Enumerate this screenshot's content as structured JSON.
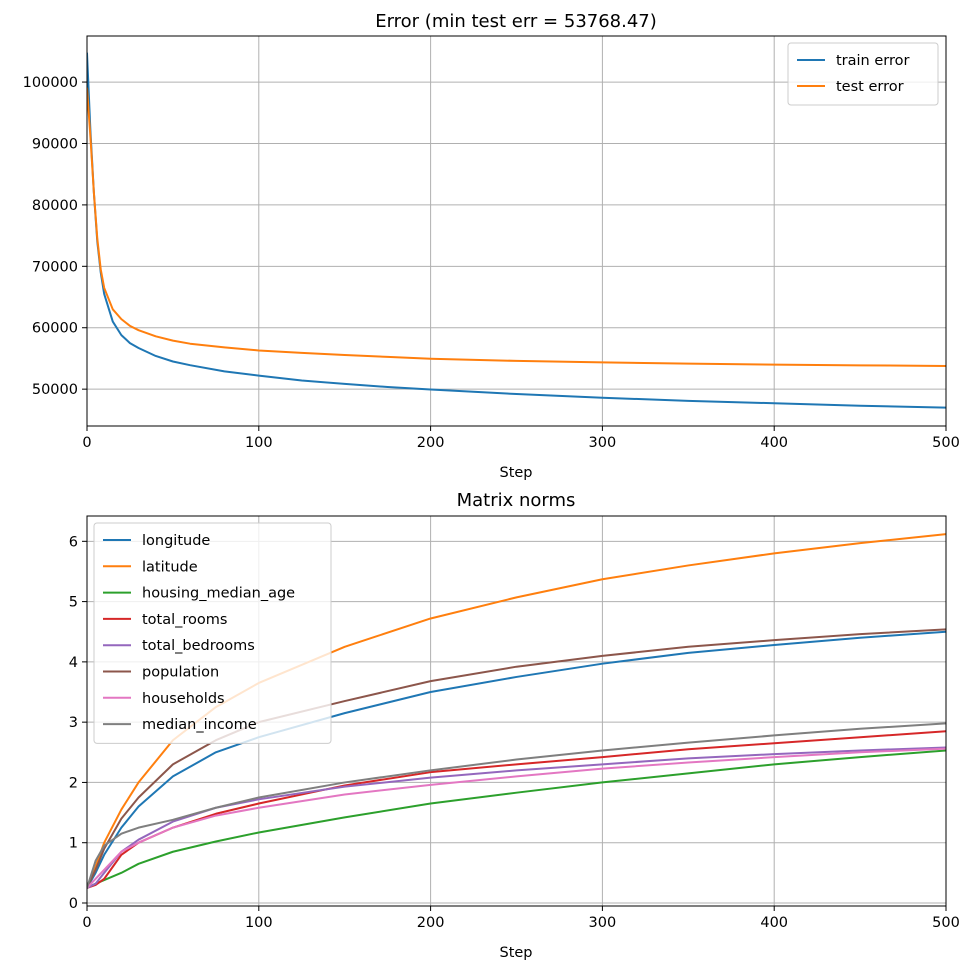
{
  "chart_data": [
    {
      "type": "line",
      "title": "Error (min test err = 53768.47)",
      "xlabel": "Step",
      "ylabel": "",
      "xlim": [
        0,
        500
      ],
      "ylim": [
        44000,
        107500
      ],
      "xticks": [
        0,
        100,
        200,
        300,
        400,
        500
      ],
      "yticks": [
        50000,
        60000,
        70000,
        80000,
        90000,
        100000
      ],
      "grid": true,
      "legend_position": "upper right",
      "series": [
        {
          "name": "train error",
          "color": "#1f77b4",
          "x": [
            0,
            2,
            4,
            6,
            8,
            10,
            15,
            20,
            25,
            30,
            40,
            50,
            60,
            80,
            100,
            125,
            150,
            175,
            200,
            250,
            300,
            350,
            400,
            450,
            500
          ],
          "y": [
            104700,
            92000,
            82000,
            74000,
            69000,
            65500,
            61000,
            58800,
            57500,
            56700,
            55400,
            54500,
            53900,
            52900,
            52200,
            51400,
            50850,
            50350,
            49950,
            49200,
            48600,
            48100,
            47700,
            47300,
            47000
          ]
        },
        {
          "name": "test error",
          "color": "#ff7f0e",
          "x": [
            0,
            2,
            4,
            6,
            8,
            10,
            15,
            20,
            25,
            30,
            40,
            50,
            60,
            80,
            100,
            125,
            150,
            175,
            200,
            250,
            300,
            350,
            400,
            450,
            500
          ],
          "y": [
            99000,
            91000,
            82000,
            74500,
            69500,
            66500,
            63000,
            61400,
            60300,
            59600,
            58600,
            57900,
            57400,
            56800,
            56300,
            55900,
            55550,
            55250,
            54950,
            54600,
            54350,
            54150,
            54000,
            53880,
            53770
          ]
        }
      ]
    },
    {
      "type": "line",
      "title": "Matrix norms",
      "xlabel": "Step",
      "ylabel": "",
      "xlim": [
        0,
        500
      ],
      "ylim": [
        -0.05,
        6.42
      ],
      "xticks": [
        0,
        100,
        200,
        300,
        400,
        500
      ],
      "yticks": [
        0,
        1,
        2,
        3,
        4,
        5,
        6
      ],
      "grid": true,
      "legend_position": "upper left",
      "series": [
        {
          "name": "longitude",
          "color": "#1f77b4",
          "x": [
            0,
            5,
            10,
            20,
            30,
            50,
            75,
            100,
            150,
            200,
            250,
            300,
            350,
            400,
            450,
            500
          ],
          "y": [
            0.25,
            0.5,
            0.8,
            1.25,
            1.6,
            2.1,
            2.5,
            2.75,
            3.15,
            3.5,
            3.75,
            3.97,
            4.15,
            4.28,
            4.4,
            4.5
          ]
        },
        {
          "name": "latitude",
          "color": "#ff7f0e",
          "x": [
            0,
            5,
            10,
            20,
            30,
            50,
            75,
            100,
            150,
            200,
            250,
            300,
            350,
            400,
            450,
            500
          ],
          "y": [
            0.25,
            0.6,
            1.0,
            1.55,
            2.0,
            2.7,
            3.25,
            3.65,
            4.25,
            4.72,
            5.07,
            5.37,
            5.6,
            5.8,
            5.97,
            6.12
          ]
        },
        {
          "name": "housing_median_age",
          "color": "#2ca02c",
          "x": [
            0,
            5,
            10,
            20,
            30,
            50,
            75,
            100,
            150,
            200,
            250,
            300,
            350,
            400,
            450,
            500
          ],
          "y": [
            0.25,
            0.32,
            0.38,
            0.5,
            0.65,
            0.85,
            1.02,
            1.17,
            1.42,
            1.65,
            1.83,
            2.0,
            2.15,
            2.3,
            2.42,
            2.53
          ]
        },
        {
          "name": "total_rooms",
          "color": "#d62728",
          "x": [
            0,
            5,
            10,
            20,
            30,
            50,
            75,
            100,
            150,
            200,
            250,
            300,
            350,
            400,
            450,
            500
          ],
          "y": [
            0.25,
            0.3,
            0.4,
            0.8,
            1.0,
            1.25,
            1.48,
            1.65,
            1.95,
            2.17,
            2.3,
            2.42,
            2.55,
            2.65,
            2.75,
            2.85
          ]
        },
        {
          "name": "total_bedrooms",
          "color": "#9467bd",
          "x": [
            0,
            5,
            10,
            20,
            30,
            50,
            75,
            100,
            150,
            200,
            250,
            300,
            350,
            400,
            450,
            500
          ],
          "y": [
            0.25,
            0.32,
            0.5,
            0.85,
            1.05,
            1.35,
            1.58,
            1.72,
            1.93,
            2.08,
            2.2,
            2.3,
            2.4,
            2.47,
            2.53,
            2.58
          ]
        },
        {
          "name": "population",
          "color": "#8c564b",
          "x": [
            0,
            5,
            10,
            20,
            30,
            50,
            75,
            100,
            150,
            200,
            250,
            300,
            350,
            400,
            450,
            500
          ],
          "y": [
            0.25,
            0.55,
            0.9,
            1.4,
            1.75,
            2.3,
            2.7,
            3.0,
            3.35,
            3.68,
            3.92,
            4.1,
            4.25,
            4.36,
            4.46,
            4.54
          ]
        },
        {
          "name": "households",
          "color": "#e377c2",
          "x": [
            0,
            5,
            10,
            20,
            30,
            50,
            75,
            100,
            150,
            200,
            250,
            300,
            350,
            400,
            450,
            500
          ],
          "y": [
            0.25,
            0.4,
            0.55,
            0.85,
            1.0,
            1.25,
            1.45,
            1.58,
            1.8,
            1.96,
            2.1,
            2.23,
            2.33,
            2.42,
            2.5,
            2.56
          ]
        },
        {
          "name": "median_income",
          "color": "#7f7f7f",
          "x": [
            0,
            5,
            10,
            20,
            30,
            50,
            75,
            100,
            150,
            200,
            250,
            300,
            350,
            400,
            450,
            500
          ],
          "y": [
            0.25,
            0.7,
            0.95,
            1.15,
            1.25,
            1.38,
            1.58,
            1.75,
            2.0,
            2.2,
            2.38,
            2.53,
            2.66,
            2.78,
            2.89,
            2.98
          ]
        }
      ]
    }
  ]
}
